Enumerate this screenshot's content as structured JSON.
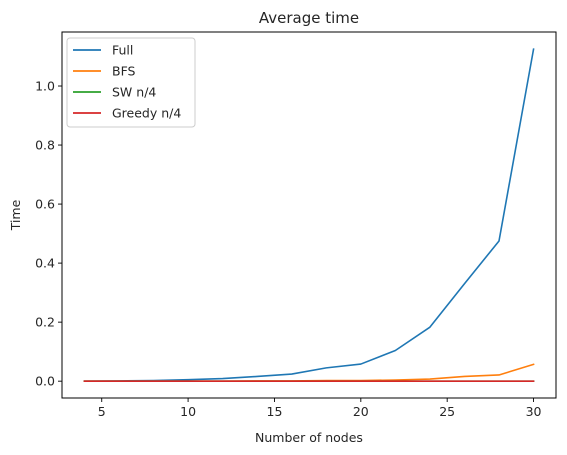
{
  "chart_data": {
    "type": "line",
    "title": "Average time",
    "xlabel": "Number of nodes",
    "ylabel": "Time",
    "xlim": [
      2.7,
      31.3
    ],
    "ylim": [
      -0.057,
      1.183
    ],
    "xticks": [
      5,
      10,
      15,
      20,
      25,
      30
    ],
    "yticks": [
      0.0,
      0.2,
      0.4,
      0.6,
      0.8,
      1.0
    ],
    "xtick_labels": [
      "5",
      "10",
      "15",
      "20",
      "25",
      "30"
    ],
    "ytick_labels": [
      "0.0",
      "0.2",
      "0.4",
      "0.6",
      "0.8",
      "1.0"
    ],
    "grid": false,
    "legend_position": "top-left",
    "x": [
      4,
      6,
      8,
      10,
      12,
      14,
      16,
      18,
      20,
      22,
      24,
      26,
      28,
      30
    ],
    "series": [
      {
        "name": "Full",
        "color": "#1f77b4",
        "values": [
          0.0,
          0.001,
          0.002,
          0.005,
          0.009,
          0.016,
          0.024,
          0.045,
          0.058,
          0.104,
          0.183,
          0.33,
          0.475,
          1.125
        ]
      },
      {
        "name": "BFS",
        "color": "#ff7f0e",
        "values": [
          0.0,
          0.0,
          0.0,
          0.0,
          0.0,
          0.001,
          0.001,
          0.002,
          0.002,
          0.004,
          0.007,
          0.016,
          0.021,
          0.057
        ]
      },
      {
        "name": "SW n/4",
        "color": "#2ca02c",
        "values": [
          0.0,
          0.0,
          0.0,
          0.0,
          0.0,
          0.0,
          0.0,
          0.0,
          0.0,
          0.0,
          0.0,
          0.0,
          0.0,
          0.0
        ]
      },
      {
        "name": "Greedy n/4",
        "color": "#d62728",
        "values": [
          0.0,
          0.0,
          0.0,
          0.0,
          0.0,
          0.0,
          0.0,
          0.0,
          0.0,
          0.0,
          0.0,
          0.0,
          0.0,
          0.0
        ]
      }
    ]
  }
}
